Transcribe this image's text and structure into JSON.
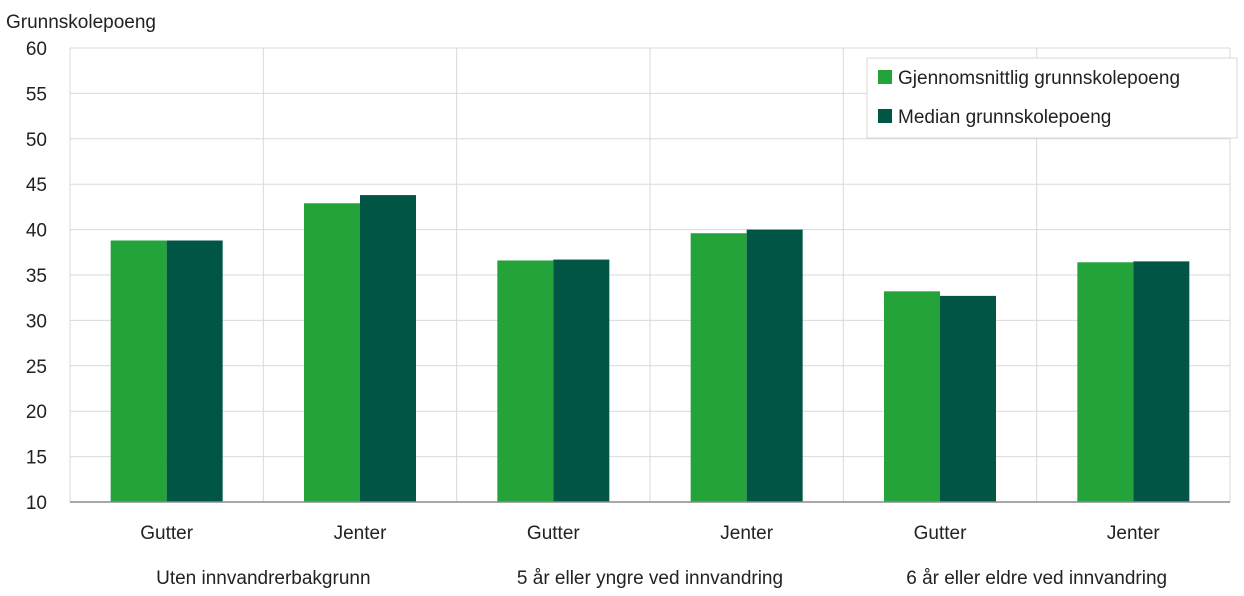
{
  "chart_data": {
    "type": "bar",
    "ylabel": "Grunnskolepoeng",
    "ylim": [
      10,
      60
    ],
    "yticks": [
      10,
      15,
      20,
      25,
      30,
      35,
      40,
      45,
      50,
      55,
      60
    ],
    "grid": true,
    "legend_position": "top-right",
    "groups": [
      "Uten innvandrerbakgrunn",
      "5 år eller yngre ved innvandring",
      "6 år eller eldre ved innvandring"
    ],
    "categories": [
      "Gutter",
      "Jenter",
      "Gutter",
      "Jenter",
      "Gutter",
      "Jenter"
    ],
    "series": [
      {
        "name": "Gjennomsnittlig grunnskolepoeng",
        "color": "#24a33a",
        "values": [
          38.8,
          42.9,
          36.6,
          39.6,
          33.2,
          36.4
        ]
      },
      {
        "name": "Median grunnskolepoeng",
        "color": "#005545",
        "values": [
          38.8,
          43.8,
          36.7,
          40.0,
          32.7,
          36.5
        ]
      }
    ]
  }
}
